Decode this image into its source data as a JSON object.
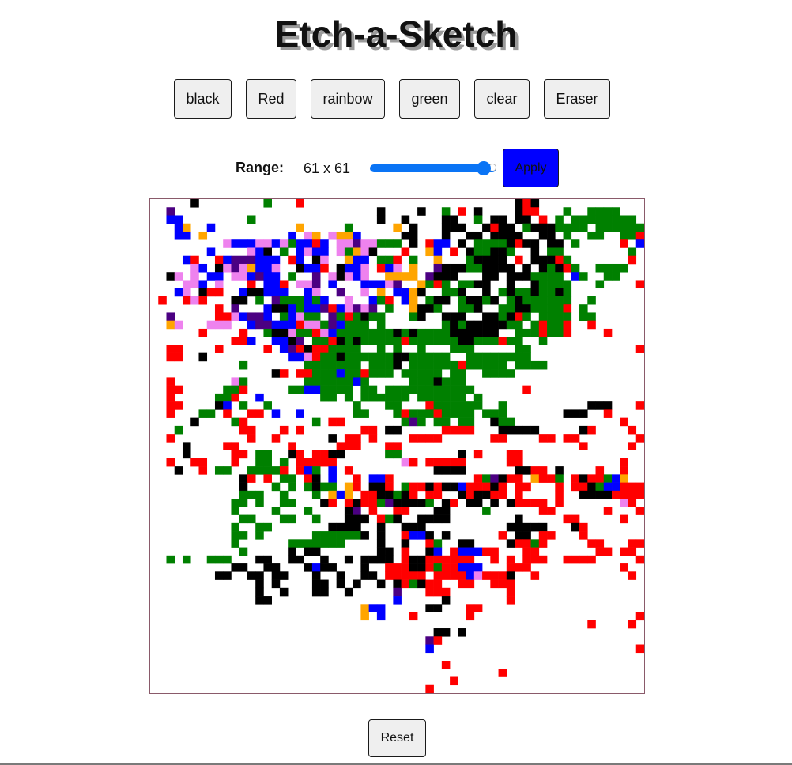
{
  "title": "Etch-a-Sketch",
  "buttons": [
    {
      "name": "black-button",
      "label": "black"
    },
    {
      "name": "red-button",
      "label": "Red"
    },
    {
      "name": "rainbow-button",
      "label": "rainbow"
    },
    {
      "name": "green-button",
      "label": "green"
    },
    {
      "name": "clear-button",
      "label": "clear"
    },
    {
      "name": "eraser-button",
      "label": "Eraser"
    }
  ],
  "range": {
    "label": "Range:",
    "value_text": "61 x 61",
    "slider_fraction": 0.95,
    "apply_label": "Apply"
  },
  "grid": {
    "size": 61,
    "colors": {
      "k": "#000000",
      "r": "#ff0000",
      "g": "#008000",
      "b": "#0000ff",
      "o": "#ffa500",
      "v": "#ee82ee",
      "p": "#4b0082"
    },
    "pattern": [
      ".....k........g...r..........................krk............",
      "..p.........................k....k..g.r.k....krr...g..gggg...",
      "..bb........g...............k..k....kk..g.kk.kk.r.g.gggggggg..",
      "...bo..b..........o.....g.....o.k...kkk..krkk.gkkkgggg.ggggggg.",
      "...bb.o..........b.vo.voob.....kk...k..kk.kkkk..kk.g..gg..ggr..",
      ".........vbbbvvbvgbbrb.vvpvvggg.k.rbb.k.ggggkrkk.kk.g.....r.bg..",
      ".......b....vbk.g.bvbb.vgovk...r..ob.r.kggkkg..k.gg........g...",
      "....br..rbpppbbb.rb.kv..obb.ggr.g..o...gkkkk.r.kkkrg.......r..",
      ".....vb.kvpvobbv..kbbr.kbbv.rbv.o..pkkkggkkkk.k.kgkrg..gggg.....",
      "..kv.v.bb.vvbpbb.g..p.vkvbv..oooo.pkkk...kk.kkkgggg.bg..gg.......",
      "....vvb.v...r.bbr.vvp.b...bbbvp..ogrg.ggkk..k..kgggg...g....r...r",
      "...bv.krr..bkkbbb..bv..p..v.o.bbok..ggk..k.gkggkggkg.........r..",
      ".r..rvr...kk.g.pgggbgb..v..bgr.bo.gkk.gkkgk.gkgggggg..g...........",
      "........r.p...bkkbgbbprbvpvp.g..okkg..ggk..ggkkggggr.g..........",
      "..p.....rrvbppb.gbvgg.pgrgkgg...gk..kkk..kkgkrg.gggg.gg..........",
      "..ov...vvv..bppbbbrvvgpbggg.g.......gkgkkkkkgg.grggr..r..........",
      "......r....r..gkkvggrvbgggggggkgkggggkkkkkk..gggrggr....r.....r..",
      "..........rrb..bbkp.ggrkgkgggggrggggggkkgggrgg..g...............",
      "..rr....r.....r.bprkrrgggg..g.g..g...ggg.....gg.............r.r..",
      "..rr..k..........bbvrggkggggggkkggggg..gggggggg...................",
      "...........g.......ggggggg.gggk.ggggggrggggg.gggg...................",
      "...............kr.rrgggbggrggg.ggggg.gg..gggg.........................",
      "..r.......vg.......ggggggbg.....gggkggg..........................",
      "..rr.....ggr.....ggbbgggg.gg.ggggggggggg......r...................",
      "..r.....ggr..b.......gg.g.gggggg.gggggg.g....................",
      "..rr....kb.g..g..........g...gg...rgggggg..g..........kkk...r....",
      "..r...gg.r..rr.b..b......gg...grgggrgggg.ggg.......kkk..r...........",
      ".....k....gr........g.rr.......gpg.gg.gg..kgg.............r......",
      "...g.......rr...r.r.......rr.kk.....rrrr...kkkkk.....kr....r....rr..",
      "..r.........r..r......k.rr.r....rrrr......rr....rr.rr.......r......",
      "....k....rr......r.....rrr...rr......................r.....r.....r..",
      "....k.....rr.gg..kr.rrkk.....gg.......k.r...rr.......................",
      "..r..rr...r..gg.g.rrrrr........vr.rrrrr.....rr............r.....r....",
      "...k..r.gg..ggggr.rbg.b.r..........kkkk......kkrr.k....r..r......r....",
      "...........kr.r.gg.rk.b..r.bbr..........rgpkrr.orrg.rkrrgbo.........",
      "...........k...g.g.gkgg.or.kkr.grrkrkkbrrrkr.rr...r.rrkgbbrrrr.......",
      "...........ggg..g...g.obo.rrkkgkr.rr..krkkrr.r....r..kkkkrrrr......",
      "..........gg.g..gg...kr.rkrrgpkkkkg.kr.kk.k.krrrr.r.......vr........",
      "..........g....g...g....kp.r..rr...kk....g......rr......r...r...r...",
      "...........gg...gg..g...kkk.rgk..kkkk........k.....rr.....r...........",
      "..........g..gg.......kkkk..k..kkk..........kkkkk...kr.......r.......",
      "..........gg.g......ggggggk.k..rbbk.k......r.kk.rr...r..........rr.",
      "..........g......ggggggg....k..k..rg..kk....krrgr.....rr...rrr.........",
      "...........g.....k.kk.......kk.r..kb.rbbbrr...rr.......rr.rr...........",
      "..g.g..ggg...kk..kk..k..k.kkkk.rkkrrrrrr..r.r.rrr..rrrr.....r..........",
      "..........kk..kk...kbkk...k..rrrkkrgrrbbb...rrr...........r.....r.....",
      "........kk..kk.kk...k..k..kk.rrrrr.rrrrbvrrrk..r...........r......r......",
      ".............k.k....kk.k.k..k.krgkrr..rr..rrr..................r......",
      ".............k..k...kk..k.....p...rrr.......r....................r..",
      ".............kk...............b.....k.......r.........................",
      "..........................obb.....kk...rr..........................",
      "..........................o.b...r......r....................r...r.",
      "......................................................r....r..........",
      "...................................kk.k..............................",
      "..................................pr.................................r.",
      "..................................b.........................r.........",
      ".............................................................r........",
      "....................................r...................................",
      "...........................................r.................................",
      ".....................................r.......................r.........",
      "..................................r..................................."
    ]
  },
  "reset_label": "Reset"
}
